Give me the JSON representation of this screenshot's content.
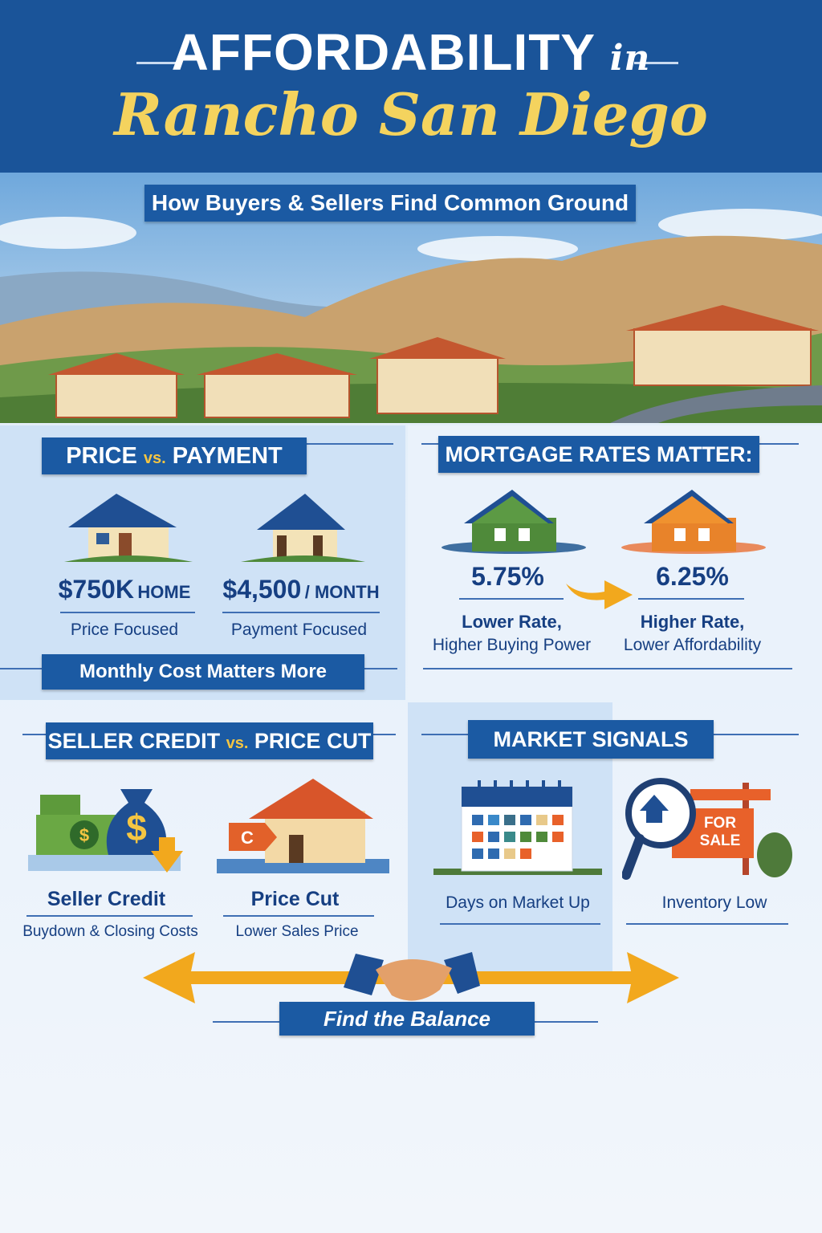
{
  "header": {
    "title_main": "AFFORDABILITY",
    "title_in": "in",
    "title_script": "Rancho San Diego",
    "subtitle": "How Buyers & Sellers Find Common Ground"
  },
  "price_vs_payment": {
    "title_a": "PRICE",
    "title_vs": "vs.",
    "title_b": "PAYMENT",
    "left": {
      "value": "$750K",
      "unit": "HOME",
      "label": "Price Focused"
    },
    "right": {
      "value": "$4,500",
      "unit": "/ MONTH",
      "label": "Payment Focused"
    },
    "footer": "Monthly Cost Matters More"
  },
  "mortgage_rates": {
    "title": "MORTGAGE RATES MATTER:",
    "left": {
      "rate": "5.75%",
      "line1": "Lower Rate,",
      "line2": "Higher Buying Power",
      "color": "#4f8a3a"
    },
    "right": {
      "rate": "6.25%",
      "line1": "Higher Rate,",
      "line2": "Lower Affordability",
      "color": "#e8832a"
    }
  },
  "seller_credit": {
    "title_a": "SELLER CREDIT",
    "title_vs": "vs.",
    "title_b": "PRICE CUT",
    "left": {
      "label": "Seller Credit",
      "sub": "Buydown & Closing Costs"
    },
    "right": {
      "label": "Price Cut",
      "sub": "Lower Sales Price"
    }
  },
  "market_signals": {
    "title": "MARKET SIGNALS",
    "left": {
      "label": "Days on Market Up"
    },
    "right": {
      "label": "Inventory Low",
      "sign_line1": "FOR",
      "sign_line2": "SALE"
    }
  },
  "footer": {
    "label": "Find the Balance"
  },
  "colors": {
    "brand_blue": "#1a5499",
    "accent_yellow": "#f4d35e",
    "arrow_orange": "#f2a81d"
  }
}
